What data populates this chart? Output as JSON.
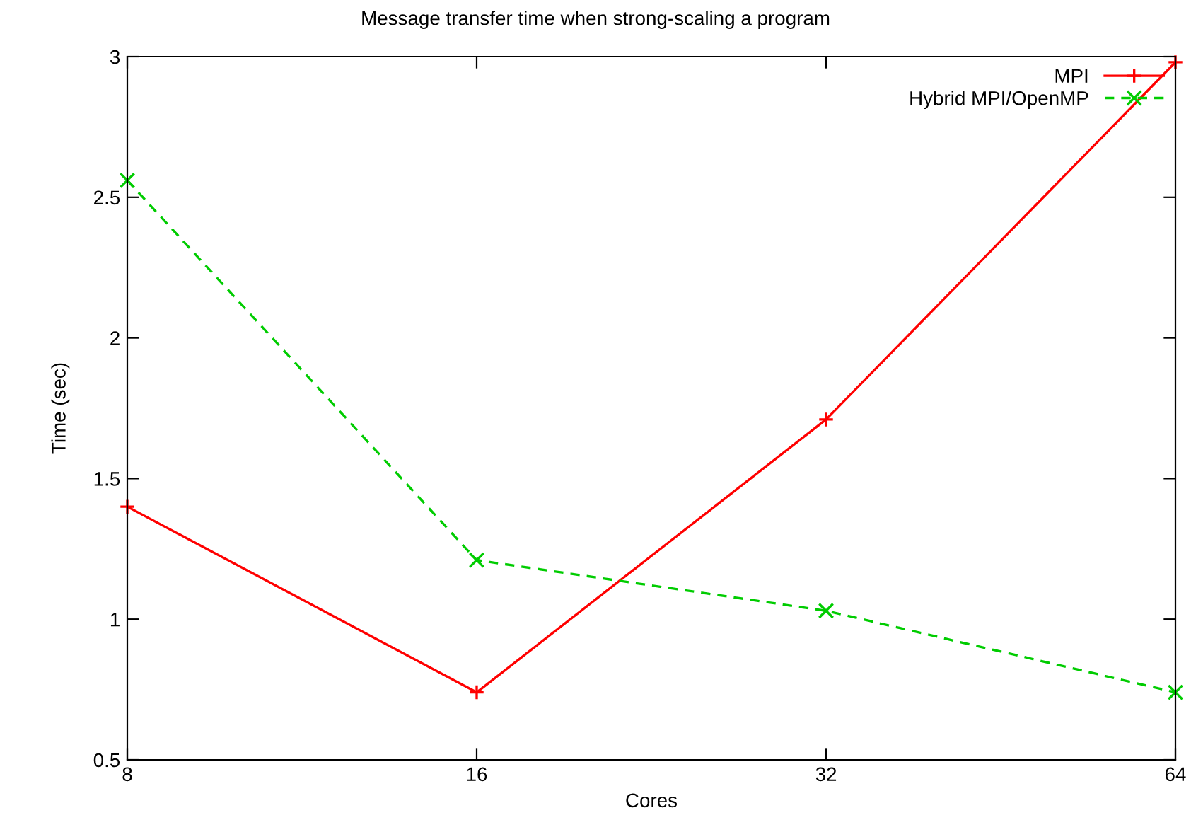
{
  "chart_data": {
    "type": "line",
    "title": "Message transfer time when strong-scaling a program",
    "xlabel": "Cores",
    "ylabel": "Time (sec)",
    "x": [
      8,
      16,
      32,
      64
    ],
    "log": "x",
    "series": [
      {
        "name": "MPI",
        "color": "#ff0000",
        "values": [
          1.4,
          0.74,
          1.71,
          2.98
        ],
        "marker": "plus",
        "line_style": "solid"
      },
      {
        "name": "Hybrid MPI/OpenMP",
        "color": "#00cc00",
        "values": [
          2.56,
          1.21,
          1.03,
          0.74
        ],
        "marker": "cross",
        "line_style": "dashed"
      }
    ],
    "xlim": [
      8,
      64
    ],
    "xticks": [
      8,
      16,
      32,
      64
    ],
    "ylim": [
      0.5,
      3
    ],
    "yticks": [
      0.5,
      1,
      1.5,
      2,
      2.5,
      3
    ],
    "grid": false,
    "legend": "top right"
  }
}
